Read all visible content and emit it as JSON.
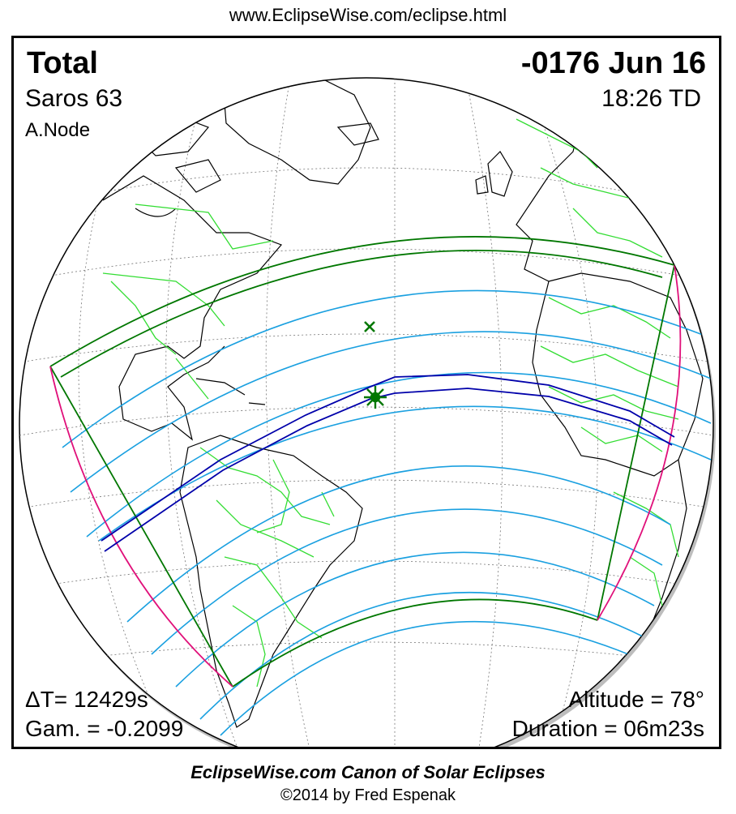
{
  "header": {
    "url": "www.EclipseWise.com/eclipse.html"
  },
  "eclipse": {
    "type": "Total",
    "date": "-0176 Jun 16",
    "saros": "Saros  63",
    "time": "18:26 TD",
    "node": "A.Node",
    "delta_t": "ΔT=  12429s",
    "gamma": "Gam. = -0.2099",
    "altitude": "Altitude = 78°",
    "duration": "Duration = 06m23s"
  },
  "footer": {
    "canon": "EclipseWise.com Canon of Solar Eclipses",
    "copyright": "©2014 by Fred Espenak"
  },
  "colors": {
    "coastline": "#000000",
    "borders": "#33dd33",
    "penumbra_limits": "#007700",
    "rise_set_curve": "#e0107a",
    "magnitude_lines": "#1aa0e0",
    "central_path": "#0000aa",
    "greatest_eclipse": "#007700"
  },
  "markers": {
    "greatest_eclipse_icon": "star-burst-icon",
    "subsolar_icon": "x-mark-icon"
  }
}
